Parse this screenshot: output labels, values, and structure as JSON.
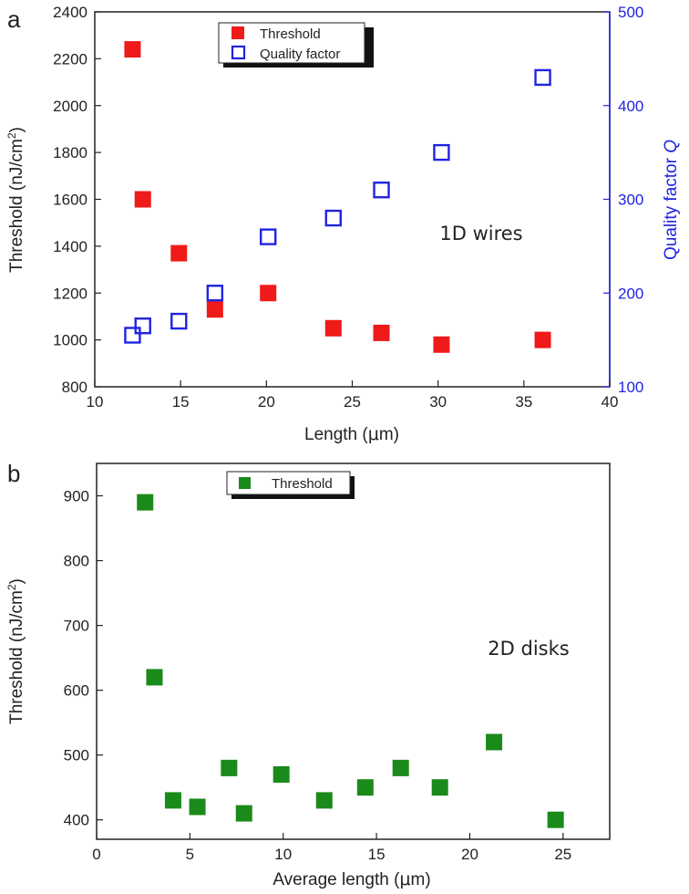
{
  "chart_data": [
    {
      "panel": "a",
      "type": "scatter",
      "xlabel_pre": "Length (",
      "xlabel_greek": "μ",
      "xlabel_post": "m)",
      "ylabel": "Threshold (nJ/cm",
      "ylabel_sup": "2",
      "ylabel_close": ")",
      "y2label": "Quality factor ",
      "y2label_italic": "Q",
      "xlim": [
        10,
        40
      ],
      "ylim": [
        800,
        2400
      ],
      "y2lim": [
        100,
        500
      ],
      "xticks": [
        10,
        15,
        20,
        25,
        30,
        35,
        40
      ],
      "yticks": [
        800,
        1000,
        1200,
        1400,
        1600,
        1800,
        2000,
        2200,
        2400
      ],
      "y2ticks": [
        100,
        200,
        300,
        400,
        500
      ],
      "annotation": "1D wires",
      "legend_position": "top",
      "series": [
        {
          "name": "Threshold",
          "axis": "left",
          "marker": "filled-square",
          "color": "#ef1a1a",
          "x": [
            12.2,
            12.8,
            14.9,
            17.0,
            20.1,
            23.9,
            26.7,
            30.2,
            36.1
          ],
          "y": [
            2240,
            1600,
            1370,
            1130,
            1200,
            1050,
            1030,
            980,
            1000
          ]
        },
        {
          "name": "Quality factor",
          "axis": "right",
          "marker": "open-square",
          "color": "#1f24e0",
          "x": [
            12.2,
            12.8,
            14.9,
            17.0,
            20.1,
            23.9,
            26.7,
            30.2,
            36.1
          ],
          "y": [
            155,
            165,
            170,
            200,
            260,
            280,
            310,
            350,
            430
          ]
        }
      ]
    },
    {
      "panel": "b",
      "type": "scatter",
      "xlabel_pre": "Average length (",
      "xlabel_greek": "μ",
      "xlabel_post": "m)",
      "ylabel": "Threshold (nJ/cm",
      "ylabel_sup": "2",
      "ylabel_close": ")",
      "xlim": [
        0,
        27.5
      ],
      "ylim": [
        370,
        950
      ],
      "xticks": [
        0,
        5,
        10,
        15,
        20,
        25
      ],
      "yticks": [
        400,
        500,
        600,
        700,
        800,
        900
      ],
      "annotation": "2D disks",
      "legend_position": "top",
      "series": [
        {
          "name": "Threshold",
          "axis": "left",
          "marker": "filled-square",
          "color": "#1a8a1a",
          "x": [
            2.6,
            3.1,
            4.1,
            5.4,
            7.1,
            7.9,
            9.9,
            12.2,
            14.4,
            16.3,
            18.4,
            21.3,
            24.6
          ],
          "y": [
            890,
            620,
            430,
            420,
            480,
            410,
            470,
            430,
            450,
            480,
            450,
            520,
            400
          ]
        }
      ]
    }
  ]
}
